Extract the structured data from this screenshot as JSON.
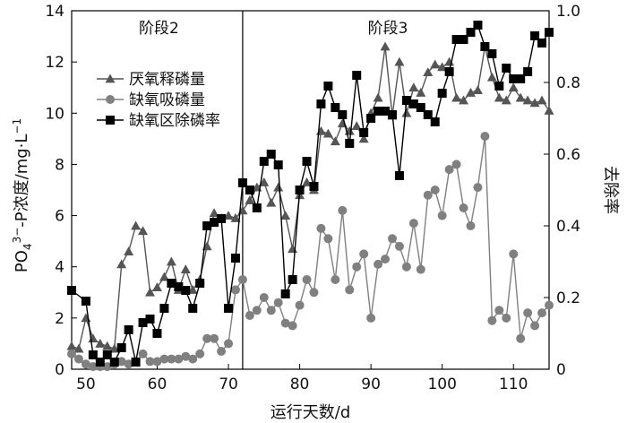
{
  "chart_data": {
    "type": "line",
    "xlabel": "运行天数/d",
    "ylabel": "PO4^3−-P浓度/mg·L^−1",
    "ylabel_parts": {
      "a": "PO",
      "b": "4",
      "c": "3−",
      "d": "-P浓度/mg·L",
      "e": "−1"
    },
    "y2label": "去除率",
    "xlim": [
      48,
      115
    ],
    "ylim": [
      0,
      14
    ],
    "y2lim": [
      0,
      1.0
    ],
    "xticks": [
      "50",
      "60",
      "70",
      "80",
      "90",
      "100",
      "110"
    ],
    "yticks": [
      "0",
      "2",
      "4",
      "6",
      "8",
      "10",
      "12",
      "14"
    ],
    "y2ticks": [
      "0",
      "0.2",
      "0.4",
      "0.6",
      "0.8",
      "1.0"
    ],
    "stages": [
      {
        "label": "阶段2",
        "x_start": 48,
        "x_end": 72
      },
      {
        "label": "阶段3",
        "x_start": 72,
        "x_end": 115
      }
    ],
    "divider_x": 72,
    "legend_position": "top-left",
    "series": [
      {
        "name": "厌氧释磷量",
        "axis": "left",
        "marker": "triangle",
        "color": "#555555",
        "x": [
          48,
          49,
          50,
          51,
          52,
          53,
          54,
          55,
          56,
          57,
          58,
          59,
          60,
          61,
          62,
          63,
          64,
          65,
          66,
          67,
          68,
          69,
          70,
          71,
          72,
          73,
          74,
          75,
          76,
          77,
          78,
          79,
          80,
          81,
          82,
          83,
          84,
          85,
          86,
          87,
          88,
          89,
          90,
          91,
          92,
          93,
          94,
          95,
          96,
          97,
          98,
          99,
          100,
          101,
          102,
          103,
          104,
          105,
          106,
          107,
          108,
          109,
          110,
          111,
          112,
          113,
          114,
          115
        ],
        "values": [
          0.9,
          0.8,
          2.0,
          1.2,
          1.0,
          0.9,
          0.8,
          4.1,
          4.6,
          5.6,
          5.4,
          3.0,
          3.2,
          3.6,
          4.2,
          3.1,
          3.9,
          3.1,
          3.5,
          4.8,
          6.1,
          5.9,
          6.0,
          5.9,
          6.2,
          6.6,
          7.1,
          7.3,
          6.5,
          7.1,
          6.0,
          4.7,
          6.8,
          7.3,
          7.0,
          9.3,
          9.2,
          8.9,
          9.6,
          9.3,
          9.5,
          9.0,
          10.0,
          10.6,
          12.6,
          9.9,
          12.0,
          10.0,
          11.0,
          10.8,
          11.6,
          11.9,
          11.8,
          12.0,
          10.6,
          10.5,
          10.8,
          10.9,
          12.6,
          11.4,
          10.6,
          10.5,
          11.0,
          10.6,
          10.5,
          10.4,
          10.5,
          10.1
        ]
      },
      {
        "name": "缺氧吸磷量",
        "axis": "left",
        "marker": "circle",
        "color": "#808080",
        "x": [
          48,
          49,
          50,
          51,
          52,
          53,
          54,
          55,
          56,
          57,
          58,
          59,
          60,
          61,
          62,
          63,
          64,
          65,
          66,
          67,
          68,
          69,
          70,
          71,
          72,
          73,
          74,
          75,
          76,
          77,
          78,
          79,
          80,
          81,
          82,
          83,
          84,
          85,
          86,
          87,
          88,
          89,
          90,
          91,
          92,
          93,
          94,
          95,
          96,
          97,
          98,
          99,
          100,
          101,
          102,
          103,
          104,
          105,
          106,
          107,
          108,
          109,
          110,
          111,
          112,
          113,
          114,
          115
        ],
        "values": [
          0.6,
          0.4,
          0.2,
          0.1,
          0.1,
          0.1,
          0.2,
          0.3,
          0.2,
          0.3,
          0.6,
          0.3,
          0.3,
          0.4,
          0.4,
          0.4,
          0.5,
          0.4,
          0.6,
          1.2,
          1.2,
          0.7,
          1.0,
          3.1,
          3.5,
          2.1,
          2.3,
          2.8,
          2.3,
          2.6,
          1.8,
          1.7,
          2.5,
          3.5,
          3.0,
          5.5,
          5.1,
          3.5,
          6.2,
          3.1,
          4.0,
          4.5,
          2.0,
          4.1,
          4.3,
          5.1,
          4.8,
          4.0,
          5.7,
          3.9,
          6.8,
          7.0,
          6.0,
          7.8,
          8.0,
          6.3,
          5.6,
          7.1,
          9.1,
          1.9,
          2.3,
          2.0,
          4.5,
          1.2,
          2.2,
          1.7,
          2.2,
          2.5
        ]
      },
      {
        "name": "缺氧区除磷率",
        "axis": "right",
        "marker": "square",
        "color": "#000000",
        "x": [
          48,
          50,
          51,
          52,
          53,
          54,
          55,
          56,
          57,
          58,
          59,
          60,
          61,
          62,
          63,
          64,
          65,
          66,
          67,
          68,
          69,
          70,
          71,
          72,
          73,
          74,
          75,
          76,
          77,
          78,
          79,
          80,
          81,
          82,
          83,
          84,
          85,
          86,
          87,
          88,
          89,
          90,
          91,
          92,
          93,
          94,
          95,
          96,
          97,
          98,
          99,
          100,
          101,
          102,
          103,
          104,
          105,
          106,
          107,
          108,
          109,
          110,
          111,
          112,
          113,
          114,
          115
        ],
        "values": [
          0.22,
          0.19,
          0.04,
          0.02,
          0.04,
          0.02,
          0.06,
          0.11,
          0.02,
          0.13,
          0.14,
          0.1,
          0.17,
          0.24,
          0.23,
          0.22,
          0.17,
          0.24,
          0.4,
          0.41,
          0.42,
          0.17,
          0.31,
          0.52,
          0.5,
          0.45,
          0.58,
          0.6,
          0.57,
          0.21,
          0.25,
          0.5,
          0.58,
          0.51,
          0.74,
          0.79,
          0.73,
          0.71,
          0.63,
          0.82,
          0.66,
          0.7,
          0.72,
          0.72,
          0.71,
          0.54,
          0.75,
          0.74,
          0.73,
          0.71,
          0.69,
          0.77,
          0.83,
          0.92,
          0.92,
          0.94,
          0.96,
          0.9,
          0.88,
          0.79,
          0.84,
          0.81,
          0.81,
          0.83,
          0.93,
          0.91,
          0.94
        ]
      }
    ]
  }
}
